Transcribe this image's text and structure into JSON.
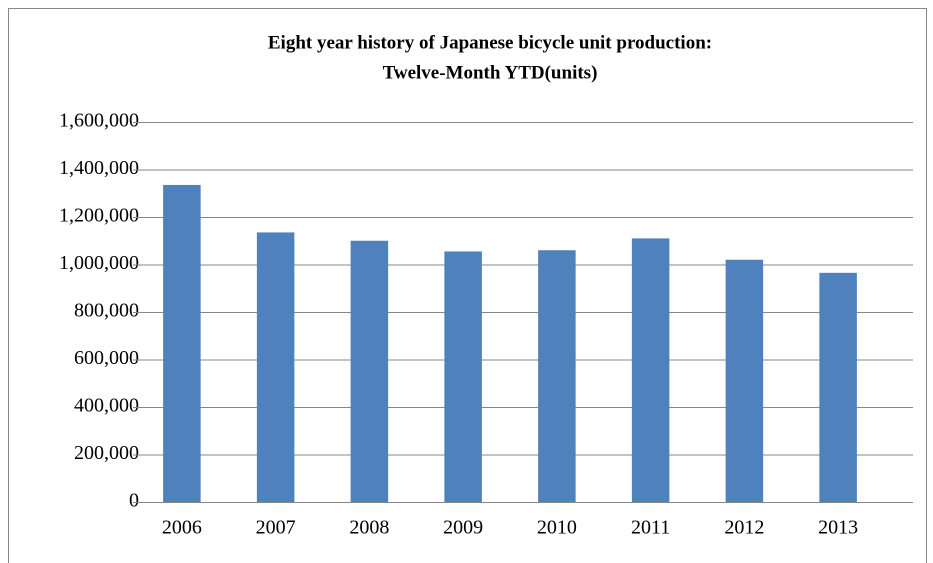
{
  "chart_data": {
    "type": "bar",
    "title": [
      "Eight year history of Japanese bicycle unit production:",
      "Twelve-Month YTD(units)"
    ],
    "categories": [
      "2006",
      "2007",
      "2008",
      "2009",
      "2010",
      "2011",
      "2012",
      "2013"
    ],
    "values": [
      1335000,
      1135000,
      1100000,
      1055000,
      1060000,
      1110000,
      1020000,
      965000
    ],
    "color": "#4f81bd",
    "ylim": [
      0,
      1600000
    ],
    "yticks": [
      0,
      {
        "value": 200000,
        "label": "200,000"
      },
      {
        "value": 400000,
        "label": "400,000"
      },
      {
        "value": 600000,
        "label": "600,000"
      },
      {
        "value": 800000,
        "label": "800,000"
      },
      {
        "value": 1000000,
        "label": "1,000,000"
      },
      {
        "value": 1200000,
        "label": "1,200,000"
      },
      {
        "value": 1400000,
        "label": "1,400,000"
      },
      {
        "value": 1600000,
        "label": "1,600,000"
      }
    ],
    "grid": true
  }
}
